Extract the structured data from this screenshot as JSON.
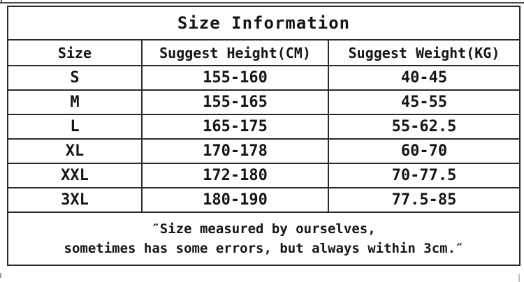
{
  "table": {
    "title": "Size Information",
    "columns": [
      "Size",
      "Suggest Height(CM)",
      "Suggest Weight(KG)"
    ],
    "rows": [
      [
        "S",
        "155-160",
        "40-45"
      ],
      [
        "M",
        "155-165",
        "45-55"
      ],
      [
        "L",
        "165-175",
        "55-62.5"
      ],
      [
        "XL",
        "170-178",
        "60-70"
      ],
      [
        "XXL",
        "172-180",
        "70-77.5"
      ],
      [
        "3XL",
        "180-190",
        "77.5-85"
      ]
    ],
    "note": {
      "line1": "″Size measured by ourselves,",
      "line2": "sometimes has some errors, but always within 3cm.″"
    },
    "colors": {
      "border": "#2a2a2a",
      "text": "#151515",
      "background": "#ffffff"
    }
  }
}
